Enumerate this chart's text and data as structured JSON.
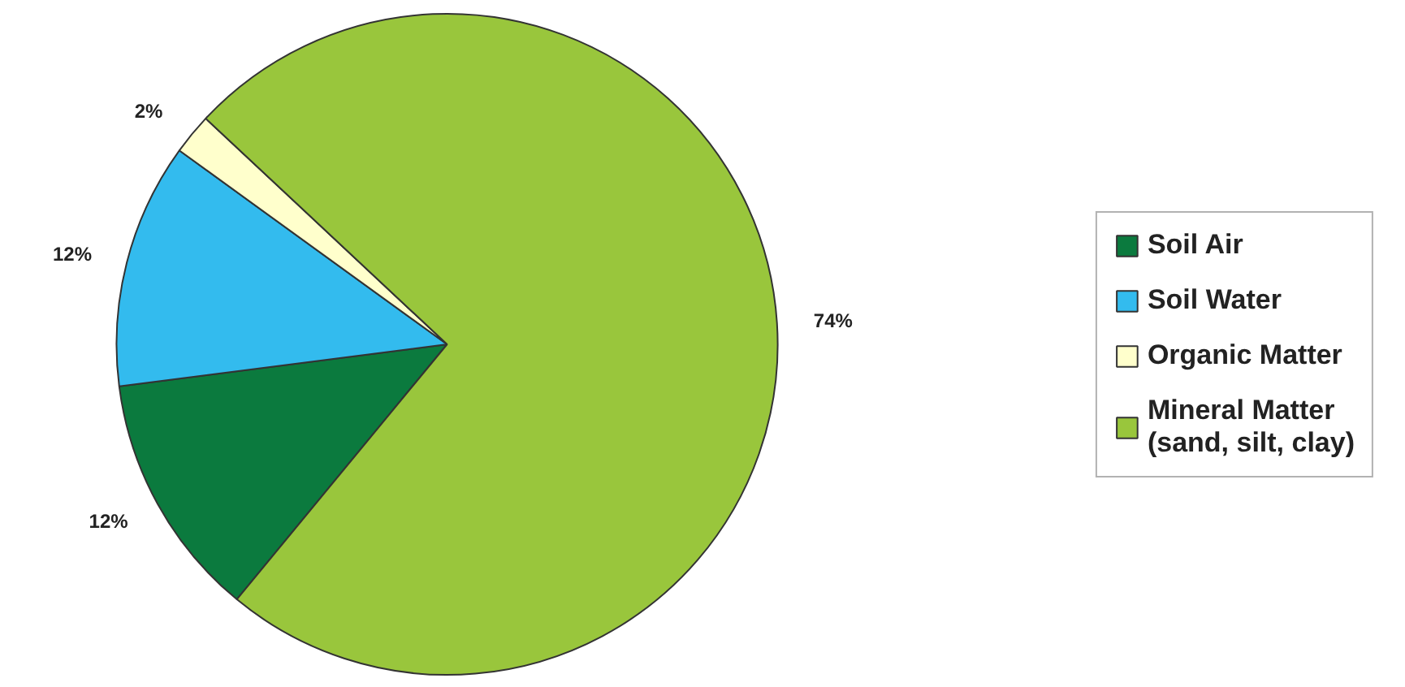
{
  "chart_data": {
    "type": "pie",
    "categories": [
      "Soil Air",
      "Soil Water",
      "Organic Matter",
      "Mineral Matter\n(sand, silt, clay)"
    ],
    "values": [
      12,
      12,
      2,
      74
    ],
    "colors": [
      "#0b7a3e",
      "#33bbee",
      "#ffffcc",
      "#99c63c"
    ],
    "value_labels": [
      "12%",
      "12%",
      "2%",
      "74%"
    ],
    "legend": "right"
  }
}
